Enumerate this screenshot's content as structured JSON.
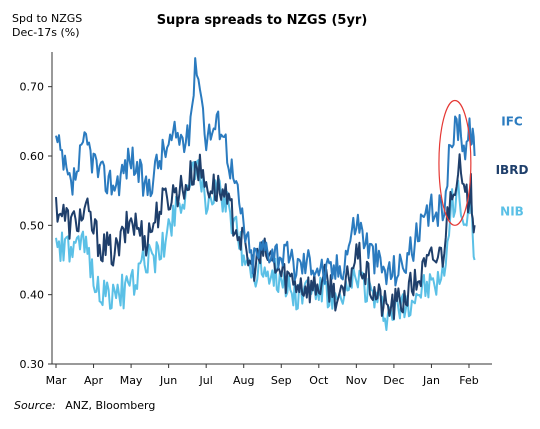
{
  "chart_data": {
    "type": "line",
    "title": "Supra spreads to NZGS (5yr)",
    "ylabel_line1": "Spd to NZGS",
    "ylabel_line2": "Dec-17s (%)",
    "ylim": [
      0.3,
      0.75
    ],
    "yticks": [
      "0.30",
      "0.40",
      "0.50",
      "0.60",
      "0.70"
    ],
    "ytick_values": [
      0.3,
      0.4,
      0.5,
      0.6,
      0.7
    ],
    "months": [
      "Mar",
      "Apr",
      "May",
      "Jun",
      "Jul",
      "Aug",
      "Sep",
      "Oct",
      "Nov",
      "Dec",
      "Jan",
      "Feb"
    ],
    "source_label": "Source:",
    "source_text": "ANZ, Bloomberg",
    "highlight": {
      "shape": "ellipse",
      "color": "#e53935",
      "x_start": 10.2,
      "x_end": 11.05,
      "y_low": 0.5,
      "y_high": 0.68
    },
    "series": [
      {
        "name": "IFC",
        "color": "#2b7bbf",
        "keypoints": [
          [
            0,
            0.62
          ],
          [
            0.4,
            0.55
          ],
          [
            0.8,
            0.62
          ],
          [
            1.2,
            0.57
          ],
          [
            1.6,
            0.56
          ],
          [
            2.0,
            0.6
          ],
          [
            2.4,
            0.55
          ],
          [
            2.8,
            0.6
          ],
          [
            3.2,
            0.63
          ],
          [
            3.5,
            0.62
          ],
          [
            3.75,
            0.74
          ],
          [
            4.0,
            0.63
          ],
          [
            4.4,
            0.65
          ],
          [
            4.8,
            0.55
          ],
          [
            5.2,
            0.45
          ],
          [
            5.6,
            0.47
          ],
          [
            6.0,
            0.46
          ],
          [
            6.4,
            0.44
          ],
          [
            6.8,
            0.45
          ],
          [
            7.2,
            0.43
          ],
          [
            7.6,
            0.44
          ],
          [
            8.0,
            0.51
          ],
          [
            8.4,
            0.46
          ],
          [
            8.8,
            0.43
          ],
          [
            9.2,
            0.44
          ],
          [
            9.6,
            0.48
          ],
          [
            10.0,
            0.52
          ],
          [
            10.3,
            0.52
          ],
          [
            10.55,
            0.63
          ],
          [
            10.75,
            0.65
          ],
          [
            10.9,
            0.61
          ],
          [
            11.05,
            0.64
          ],
          [
            11.15,
            0.6
          ]
        ]
      },
      {
        "name": "IBRD",
        "color": "#1f3f6b",
        "keypoints": [
          [
            0,
            0.53
          ],
          [
            0.4,
            0.5
          ],
          [
            0.8,
            0.52
          ],
          [
            1.2,
            0.47
          ],
          [
            1.6,
            0.46
          ],
          [
            2.0,
            0.51
          ],
          [
            2.4,
            0.48
          ],
          [
            2.8,
            0.53
          ],
          [
            3.2,
            0.55
          ],
          [
            3.5,
            0.56
          ],
          [
            3.75,
            0.59
          ],
          [
            4.0,
            0.56
          ],
          [
            4.4,
            0.55
          ],
          [
            4.8,
            0.5
          ],
          [
            5.2,
            0.44
          ],
          [
            5.6,
            0.46
          ],
          [
            6.0,
            0.43
          ],
          [
            6.4,
            0.42
          ],
          [
            6.8,
            0.41
          ],
          [
            7.2,
            0.42
          ],
          [
            7.6,
            0.39
          ],
          [
            8.0,
            0.46
          ],
          [
            8.4,
            0.41
          ],
          [
            8.8,
            0.38
          ],
          [
            9.2,
            0.39
          ],
          [
            9.6,
            0.42
          ],
          [
            10.0,
            0.45
          ],
          [
            10.3,
            0.46
          ],
          [
            10.55,
            0.56
          ],
          [
            10.75,
            0.58
          ],
          [
            10.9,
            0.53
          ],
          [
            11.05,
            0.55
          ],
          [
            11.15,
            0.5
          ]
        ]
      },
      {
        "name": "NIB",
        "color": "#5bc0e6",
        "keypoints": [
          [
            0,
            0.47
          ],
          [
            0.4,
            0.46
          ],
          [
            0.8,
            0.47
          ],
          [
            1.2,
            0.4
          ],
          [
            1.6,
            0.4
          ],
          [
            2.0,
            0.41
          ],
          [
            2.4,
            0.45
          ],
          [
            2.8,
            0.46
          ],
          [
            3.2,
            0.53
          ],
          [
            3.5,
            0.55
          ],
          [
            3.75,
            0.58
          ],
          [
            4.0,
            0.54
          ],
          [
            4.4,
            0.55
          ],
          [
            4.8,
            0.49
          ],
          [
            5.2,
            0.43
          ],
          [
            5.6,
            0.44
          ],
          [
            6.0,
            0.42
          ],
          [
            6.4,
            0.4
          ],
          [
            6.8,
            0.41
          ],
          [
            7.2,
            0.4
          ],
          [
            7.6,
            0.38
          ],
          [
            8.0,
            0.43
          ],
          [
            8.4,
            0.4
          ],
          [
            8.8,
            0.37
          ],
          [
            9.2,
            0.38
          ],
          [
            9.6,
            0.4
          ],
          [
            10.0,
            0.41
          ],
          [
            10.3,
            0.42
          ],
          [
            10.55,
            0.53
          ],
          [
            10.75,
            0.55
          ],
          [
            10.9,
            0.5
          ],
          [
            11.05,
            0.52
          ],
          [
            11.15,
            0.45
          ]
        ]
      }
    ]
  }
}
